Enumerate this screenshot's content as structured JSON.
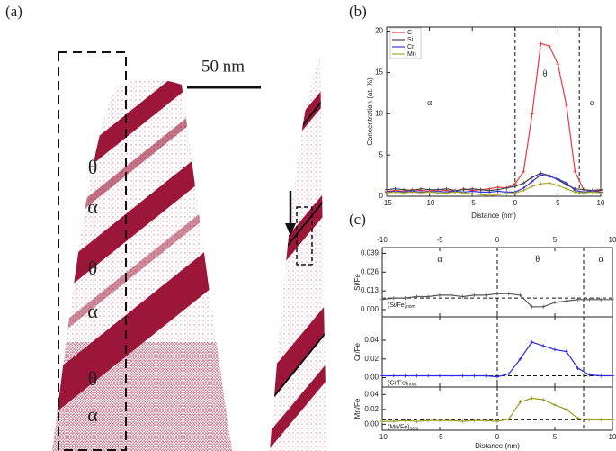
{
  "panel_a": {
    "label": "(a)",
    "scale_bar": "50 nm",
    "phase_labels": [
      "θ",
      "α",
      "θ",
      "α",
      "θ",
      "α"
    ]
  },
  "chart_data": [
    {
      "type": "line",
      "panel_label": "(b)",
      "y_label": "Concentration (at. %)",
      "x_label": "Distance (nm)",
      "x": [
        -15,
        -14,
        -13,
        -12,
        -11,
        -10,
        -9,
        -8,
        -7,
        -6,
        -5,
        -4,
        -3,
        -2,
        -1,
        0,
        1,
        2,
        3,
        4,
        5,
        6,
        7,
        8,
        9,
        10
      ],
      "series": [
        {
          "name": "C",
          "color": "#e8383d",
          "values": [
            0.6,
            0.7,
            0.6,
            0.8,
            0.7,
            0.6,
            0.8,
            0.7,
            0.6,
            0.9,
            0.7,
            0.8,
            0.9,
            1.1,
            1.0,
            1.5,
            3.0,
            10.0,
            18.5,
            18.2,
            16.0,
            11.0,
            3.0,
            0.8,
            0.6,
            0.7
          ]
        },
        {
          "name": "Si",
          "color": "#444444",
          "values": [
            0.8,
            0.9,
            0.8,
            0.7,
            0.9,
            0.8,
            0.8,
            0.9,
            0.7,
            0.8,
            0.9,
            0.8,
            0.7,
            0.8,
            1.0,
            1.2,
            1.6,
            2.3,
            2.8,
            2.5,
            2.0,
            1.4,
            0.9,
            0.8,
            0.7,
            0.8
          ]
        },
        {
          "name": "Cr",
          "color": "#3a3ad0",
          "values": [
            0.5,
            0.6,
            0.5,
            0.6,
            0.5,
            0.5,
            0.6,
            0.5,
            0.6,
            0.5,
            0.6,
            0.5,
            0.5,
            0.6,
            0.5,
            0.5,
            1.0,
            1.8,
            2.6,
            2.4,
            2.1,
            1.6,
            0.7,
            0.5,
            0.6,
            0.5
          ]
        },
        {
          "name": "Mn",
          "color": "#a8a830",
          "values": [
            0.4,
            0.5,
            0.4,
            0.5,
            0.4,
            0.5,
            0.4,
            0.4,
            0.5,
            0.4,
            0.3,
            0.2,
            0.1,
            0.2,
            0.3,
            0.4,
            0.7,
            1.2,
            1.5,
            1.6,
            1.3,
            0.9,
            0.5,
            0.4,
            0.5,
            0.4
          ]
        }
      ],
      "xlim": [
        -15,
        10
      ],
      "xticks": [
        -15,
        -10,
        -5,
        0,
        5,
        10
      ],
      "ylim": [
        0,
        20.5
      ],
      "yticks": [
        0,
        5,
        10,
        15,
        20
      ],
      "vlines": [
        0,
        7.5
      ],
      "annotations": [
        "α",
        "θ",
        "α"
      ],
      "legend": "upper left"
    },
    {
      "type": "line",
      "panel_label": "(c)",
      "y_label": "Si/Fe",
      "x": [
        -10,
        -9,
        -8,
        -7,
        -6,
        -5,
        -4,
        -3,
        -2,
        -1,
        0,
        1,
        2,
        3,
        4,
        5,
        6,
        7,
        8,
        9,
        10
      ],
      "series": [
        {
          "color": "#555555",
          "values": [
            0.007,
            0.008,
            0.008,
            0.009,
            0.009,
            0.01,
            0.01,
            0.009,
            0.01,
            0.01,
            0.011,
            0.011,
            0.01,
            0.002,
            0.002,
            0.005,
            0.006,
            0.007,
            0.007,
            0.007,
            0.007
          ]
        }
      ],
      "xlim": [
        -10,
        10
      ],
      "xticks": [
        -10,
        -5,
        0,
        5,
        10
      ],
      "ylim": [
        -0.005,
        0.043
      ],
      "yticks": [
        {
          "value": 0,
          "label": "0.000"
        },
        0.013,
        0.026,
        0.039
      ],
      "vlines": [
        0,
        7.5
      ],
      "nominal": 0.008,
      "nominal_label": "(Si/Fe)",
      "nominal_label_sub": "nom.",
      "annotations": [
        "α",
        "θ",
        "α"
      ]
    },
    {
      "type": "line",
      "y_label": "Cr/Fe",
      "x": [
        -10,
        -9,
        -8,
        -7,
        -6,
        -5,
        -4,
        -3,
        -2,
        -1,
        0,
        1,
        2,
        3,
        4,
        5,
        6,
        7,
        8,
        9,
        10
      ],
      "series": [
        {
          "color": "#2a2ae0",
          "values": [
            0.002,
            0.002,
            0.002,
            0.002,
            0.002,
            0.002,
            0.002,
            0.002,
            0.002,
            0.002,
            0.001,
            0.004,
            0.02,
            0.038,
            0.034,
            0.03,
            0.028,
            0.01,
            0.003,
            0.002,
            0.002
          ]
        }
      ],
      "xlim": [
        -10,
        10
      ],
      "xticks": [
        -10,
        -5,
        0,
        5,
        10
      ],
      "ylim": [
        -0.01,
        0.065
      ],
      "yticks": [
        {
          "value": 0,
          "label": "0.00"
        },
        0.02,
        0.04
      ],
      "vlines": [
        0,
        7.5
      ],
      "nominal": 0.002,
      "nominal_label": "(Cr/Fe)",
      "nominal_label_sub": "nom."
    },
    {
      "type": "line",
      "y_label": "Mn/Fe",
      "x_label": "Distance (nm)",
      "x": [
        -10,
        -9,
        -8,
        -7,
        -6,
        -5,
        -4,
        -3,
        -2,
        -1,
        0,
        1,
        2,
        3,
        4,
        5,
        6,
        7,
        8,
        9,
        10
      ],
      "series": [
        {
          "color": "#9a9a20",
          "values": [
            0.004,
            0.004,
            0.005,
            0.004,
            0.005,
            0.005,
            0.005,
            0.004,
            0.005,
            0.005,
            0.004,
            0.007,
            0.03,
            0.035,
            0.033,
            0.026,
            0.02,
            0.008,
            0.006,
            0.006,
            0.006
          ]
        }
      ],
      "xlim": [
        -10,
        10
      ],
      "xticks": [
        -10,
        -5,
        0,
        5,
        10
      ],
      "ylim": [
        -0.008,
        0.05
      ],
      "yticks": [
        {
          "value": 0,
          "label": "0.00"
        },
        0.02,
        0.04
      ],
      "vlines": [
        0,
        7.5
      ],
      "nominal": 0.006,
      "nominal_label": "(Mn/Fe)",
      "nominal_label_sub": "nom."
    }
  ]
}
